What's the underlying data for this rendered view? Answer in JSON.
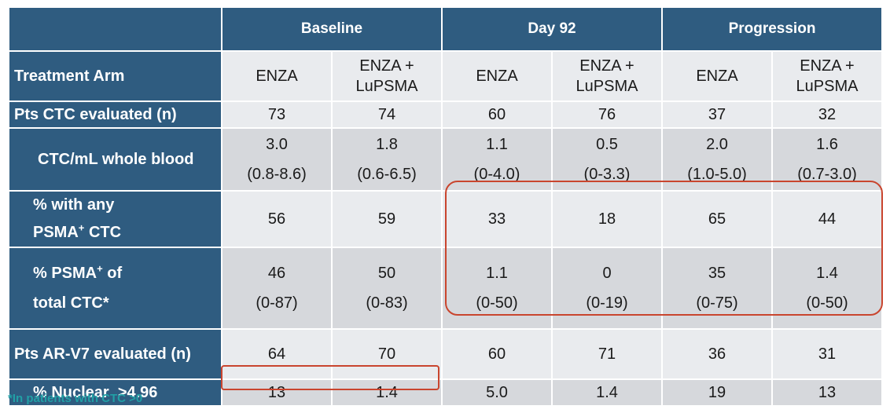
{
  "table": {
    "groups": [
      {
        "label": "Baseline"
      },
      {
        "label": "Day 92"
      },
      {
        "label": "Progression"
      }
    ],
    "arm_row": {
      "label": "Treatment Arm",
      "arms": [
        "ENZA",
        "ENZA + LuPSMA",
        "ENZA",
        "ENZA + LuPSMA",
        "ENZA",
        "ENZA + LuPSMA"
      ]
    },
    "rows": [
      {
        "label": "Pts CTC evaluated (n)",
        "values": [
          "73",
          "74",
          "60",
          "76",
          "37",
          "32"
        ]
      },
      {
        "label": "CTC/mL whole blood",
        "values": [
          "3.0",
          "1.8",
          "1.1",
          "0.5",
          "2.0",
          "1.6"
        ],
        "ranges": [
          "(0.8-8.6)",
          "(0.6-6.5)",
          "(0-4.0)",
          "(0-3.3)",
          "(1.0-5.0)",
          "(0.7-3.0)"
        ]
      },
      {
        "label_line1": "% with any",
        "label_line2_pre": "PSMA",
        "label_line2_sup": "+",
        "label_line2_post": " CTC",
        "values": [
          "56",
          "59",
          "33",
          "18",
          "65",
          "44"
        ]
      },
      {
        "label_line1_pre": "% PSMA",
        "label_line1_sup": "+",
        "label_line1_post": " of",
        "label_line2": "total CTC*",
        "values": [
          "46",
          "50",
          "1.1",
          "0",
          "35",
          "1.4"
        ],
        "ranges": [
          "(0-87)",
          "(0-83)",
          "(0-50)",
          "(0-19)",
          "(0-75)",
          "(0-50)"
        ]
      },
      {
        "label": "Pts AR-V7 evaluated (n)",
        "values": [
          "64",
          "70",
          "60",
          "71",
          "36",
          "31"
        ]
      },
      {
        "label": "% Nuclear  >4.96",
        "values": [
          "13",
          "1.4",
          "5.0",
          "1.4",
          "19",
          "13"
        ]
      }
    ]
  },
  "footnote": "*In patients with CTC >0",
  "colors": {
    "header_blue": "#2f5c80",
    "cell_light": "#e9ebee",
    "cell_dark": "#d6d8dc",
    "highlight_red": "#c9452e",
    "footnote_teal": "#21a0a6"
  }
}
